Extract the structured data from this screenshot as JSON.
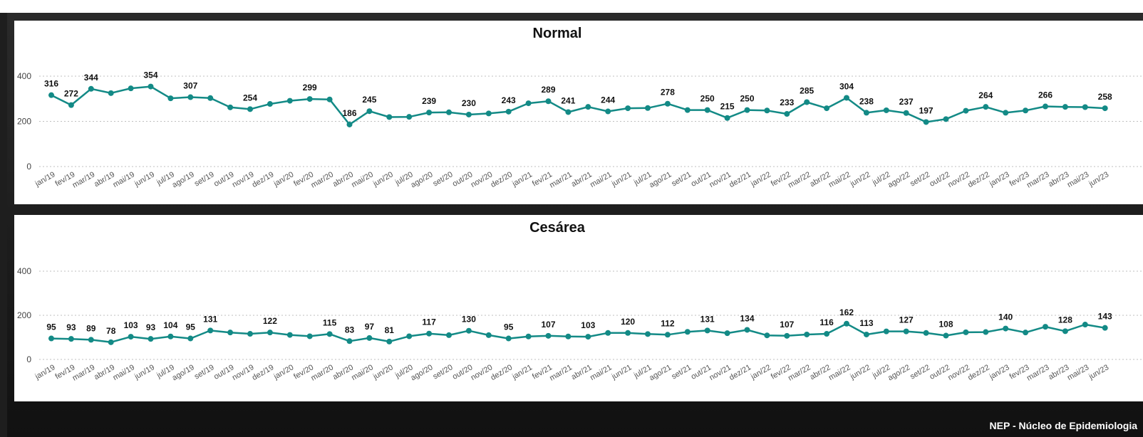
{
  "colors": {
    "series": "#138a86",
    "background": "#1e1e1e",
    "panel": "#ffffff"
  },
  "footer": {
    "text": "NEP - Núcleo de Epidemiologia"
  },
  "months": [
    "jan/19",
    "fev/19",
    "mar/19",
    "abr/19",
    "mai/19",
    "jun/19",
    "jul/19",
    "ago/19",
    "set/19",
    "out/19",
    "nov/19",
    "dez/19",
    "jan/20",
    "fev/20",
    "mar/20",
    "abr/20",
    "mai/20",
    "jun/20",
    "jul/20",
    "ago/20",
    "set/20",
    "out/20",
    "nov/20",
    "dez/20",
    "jan/21",
    "fev/21",
    "mar/21",
    "abr/21",
    "mai/21",
    "jun/21",
    "jul/21",
    "ago/21",
    "set/21",
    "out/21",
    "nov/21",
    "dez/21",
    "jan/22",
    "fev/22",
    "mar/22",
    "abr/22",
    "mai/22",
    "jun/22",
    "jul/22",
    "ago/22",
    "set/22",
    "out/22",
    "nov/22",
    "dez/22",
    "jan/23",
    "fev/23",
    "mar/23",
    "abr/23",
    "mai/23",
    "jun/23"
  ],
  "chart_data": [
    {
      "type": "line",
      "title": "Normal",
      "xlabel": "",
      "ylabel": "",
      "ylim": [
        0,
        420
      ],
      "yticks": [
        0,
        200,
        400
      ],
      "grid": true,
      "values": [
        316,
        272,
        344,
        325,
        346,
        354,
        302,
        307,
        303,
        262,
        254,
        277,
        291,
        299,
        297,
        186,
        245,
        219,
        220,
        239,
        240,
        230,
        235,
        243,
        280,
        289,
        241,
        264,
        244,
        258,
        259,
        278,
        250,
        250,
        215,
        250,
        248,
        233,
        285,
        258,
        304,
        238,
        249,
        237,
        197,
        210,
        247,
        264,
        238,
        248,
        266,
        264,
        263,
        258
      ],
      "labeled_indices": [
        0,
        1,
        2,
        5,
        7,
        10,
        13,
        15,
        16,
        19,
        21,
        23,
        25,
        26,
        28,
        31,
        33,
        34,
        35,
        37,
        38,
        40,
        41,
        43,
        44,
        47,
        50,
        53
      ]
    },
    {
      "type": "line",
      "title": "Cesárea",
      "xlabel": "",
      "ylabel": "",
      "ylim": [
        0,
        420
      ],
      "yticks": [
        0,
        200,
        400
      ],
      "grid": true,
      "values": [
        95,
        93,
        89,
        78,
        103,
        93,
        104,
        95,
        131,
        122,
        116,
        122,
        111,
        105,
        115,
        83,
        97,
        81,
        105,
        117,
        110,
        130,
        110,
        95,
        104,
        107,
        104,
        103,
        120,
        120,
        115,
        112,
        125,
        131,
        119,
        134,
        109,
        107,
        113,
        116,
        162,
        113,
        127,
        127,
        120,
        108,
        123,
        124,
        140,
        122,
        148,
        128,
        158,
        143
      ],
      "labeled_indices": [
        0,
        1,
        2,
        3,
        4,
        5,
        6,
        7,
        8,
        11,
        14,
        15,
        16,
        17,
        19,
        21,
        23,
        25,
        27,
        29,
        31,
        33,
        35,
        37,
        39,
        40,
        41,
        43,
        45,
        48,
        51,
        53
      ]
    }
  ]
}
